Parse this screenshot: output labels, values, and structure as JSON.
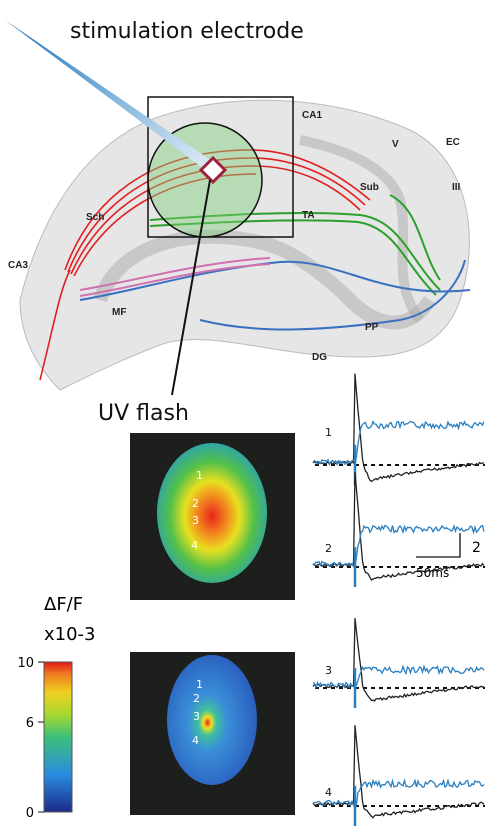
{
  "title": "stimulation electrode",
  "regions": [
    "CA1",
    "V",
    "EC",
    "III",
    "Sub",
    "Sch",
    "TA",
    "CA3",
    "MF",
    "PP",
    "DG"
  ],
  "flash_label": "UV flash",
  "image_top": {
    "sites": [
      "1",
      "2",
      "3",
      "4"
    ]
  },
  "image_bottom": {
    "sites": [
      "1",
      "2",
      "3",
      "4"
    ]
  },
  "traces": {
    "labels": [
      "1",
      "2",
      "3",
      "4"
    ],
    "scale_y": "2",
    "scale_x": "50ms"
  },
  "colorbar": {
    "label": "ΔF/F",
    "unit": "x10-3",
    "range": [
      0,
      10
    ],
    "ticks": [
      10,
      6,
      0
    ]
  }
}
